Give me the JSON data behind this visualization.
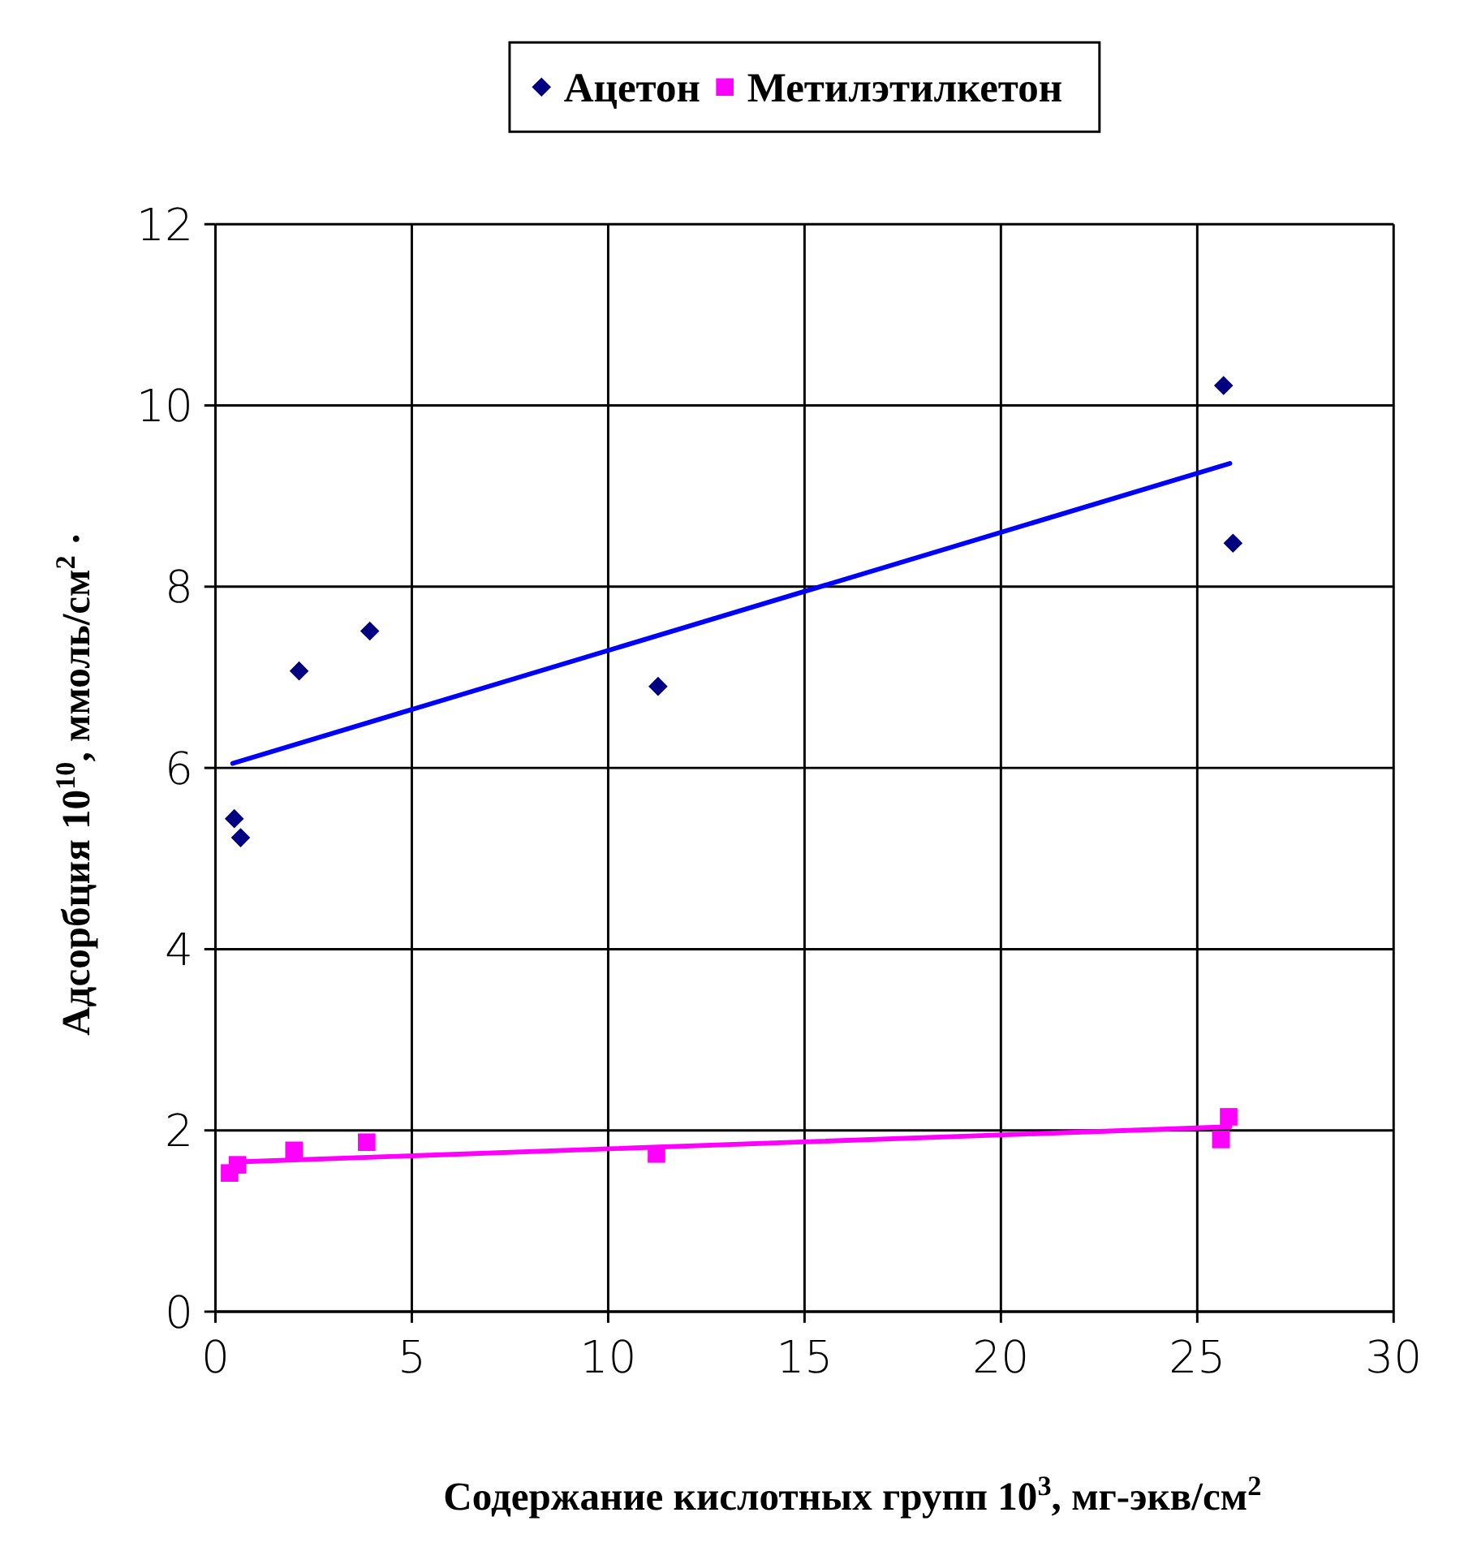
{
  "chart_data": {
    "type": "scatter",
    "xlabel": "Содержание кислотных групп 10$^{3}$, мг-экв/см$^{2}$",
    "ylabel": "Адсорбция 10$^{10}$, ммоль/см$^{2}$ ·",
    "xlim": [
      0,
      30
    ],
    "xticks": [
      0,
      5,
      10,
      15,
      20,
      25,
      30
    ],
    "ylim": [
      0,
      12
    ],
    "yticks": [
      0,
      2,
      4,
      6,
      8,
      10,
      12
    ],
    "grid": true,
    "legend": "top",
    "series": [
      {
        "name": "Ацетон",
        "type": "scatter",
        "marker": "diamond",
        "color": "#000080",
        "x": [
          0.48,
          0.64,
          2.13,
          3.93,
          11.27,
          25.67,
          25.91
        ],
        "values": [
          5.44,
          5.23,
          7.07,
          7.51,
          6.9,
          10.22,
          8.48
        ]
      },
      {
        "name": "Метилэтилкетон",
        "type": "scatter",
        "marker": "square",
        "color": "#ff00ff",
        "x": [
          0.36,
          0.56,
          2.0,
          3.85,
          11.23,
          25.6,
          25.8
        ],
        "values": [
          1.53,
          1.62,
          1.78,
          1.87,
          1.74,
          1.9,
          2.15
        ]
      },
      {
        "type": "line",
        "color": "#0000ff",
        "marker": "none",
        "x": [
          0.44,
          25.83
        ],
        "values": [
          6.05,
          9.36
        ]
      },
      {
        "type": "line",
        "color": "#ff00ff",
        "marker": "none",
        "x": [
          0.44,
          25.83
        ],
        "values": [
          1.65,
          2.04
        ]
      }
    ]
  }
}
